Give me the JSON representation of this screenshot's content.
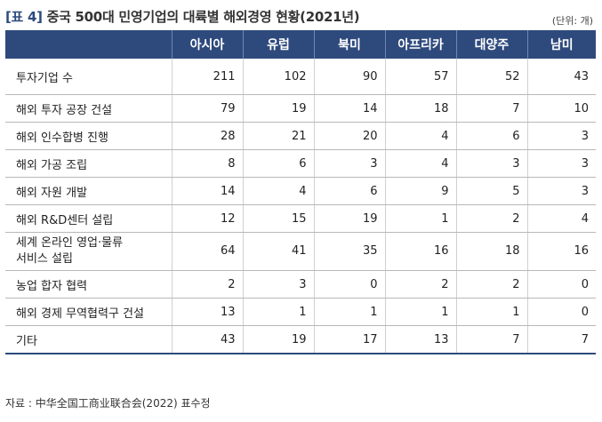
{
  "title": {
    "tag": "[표 4]",
    "text": "중국 500대 민영기업의 대륙별 해외경영 현황(2021년)",
    "unit": "(단위: 개)"
  },
  "columns": [
    "",
    "아시아",
    "유럽",
    "북미",
    "아프리카",
    "대양주",
    "남미"
  ],
  "rows": [
    {
      "label": [
        "투자기업 수"
      ],
      "values": [
        "211",
        "102",
        "90",
        "57",
        "52",
        "43"
      ]
    },
    {
      "label": [
        "해외 투자 공장 건설"
      ],
      "values": [
        "79",
        "19",
        "14",
        "18",
        "7",
        "10"
      ]
    },
    {
      "label": [
        "해외 인수합병 진행"
      ],
      "values": [
        "28",
        "21",
        "20",
        "4",
        "6",
        "3"
      ]
    },
    {
      "label": [
        "해외 가공 조립"
      ],
      "values": [
        "8",
        "6",
        "3",
        "4",
        "3",
        "3"
      ]
    },
    {
      "label": [
        "해외 자원 개발"
      ],
      "values": [
        "14",
        "4",
        "6",
        "9",
        "5",
        "3"
      ]
    },
    {
      "label": [
        "해외 R&D센터 설립"
      ],
      "values": [
        "12",
        "15",
        "19",
        "1",
        "2",
        "4"
      ]
    },
    {
      "label": [
        "세계 온라인 영업·물류",
        "서비스 설립"
      ],
      "values": [
        "64",
        "41",
        "35",
        "16",
        "18",
        "16"
      ]
    },
    {
      "label": [
        "농업 합자 협력"
      ],
      "values": [
        "2",
        "3",
        "0",
        "2",
        "2",
        "0"
      ]
    },
    {
      "label": [
        "해외 경제 무역협력구 건설"
      ],
      "values": [
        "13",
        "1",
        "1",
        "1",
        "1",
        "0"
      ]
    },
    {
      "label": [
        "기타"
      ],
      "values": [
        "43",
        "19",
        "17",
        "13",
        "7",
        "7"
      ]
    }
  ],
  "source": "자료 : 中华全国工商业联合会(2022) 표수정",
  "colors": {
    "header_bg": "#2e4a7d",
    "header_text": "#ffffff"
  }
}
